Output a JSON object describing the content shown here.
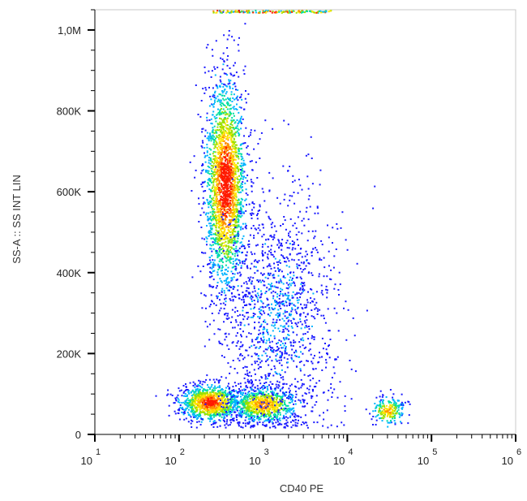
{
  "chart_data": {
    "type": "scatter",
    "subtype": "flow-cytometry-density-dot-plot",
    "title": "",
    "xlabel": "CD40 PE",
    "ylabel": "SS-A :: SS INT LIN",
    "x_scale": "log",
    "xlim": [
      10,
      1000000
    ],
    "x_ticks": [
      {
        "value": 10,
        "base": "10",
        "exp": "1"
      },
      {
        "value": 100,
        "base": "10",
        "exp": "2"
      },
      {
        "value": 1000,
        "base": "10",
        "exp": "3"
      },
      {
        "value": 10000,
        "base": "10",
        "exp": "4"
      },
      {
        "value": 100000,
        "base": "10",
        "exp": "5"
      },
      {
        "value": 1000000,
        "base": "10",
        "exp": "6"
      }
    ],
    "y_scale": "linear",
    "ylim": [
      0,
      1050000
    ],
    "y_ticks": [
      {
        "value": 0,
        "label": "0"
      },
      {
        "value": 200000,
        "label": "200K"
      },
      {
        "value": 400000,
        "label": "400K"
      },
      {
        "value": 600000,
        "label": "600K"
      },
      {
        "value": 800000,
        "label": "800K"
      },
      {
        "value": 1000000,
        "label": "1,0M"
      }
    ],
    "grid": false,
    "color_scale": [
      "#1a1aff",
      "#00b4ff",
      "#00e0a0",
      "#9be000",
      "#ffe600",
      "#ff9000",
      "#ff1a00"
    ],
    "populations": [
      {
        "x_center": 350,
        "y_center": 620000,
        "x_spread_decades": 0.12,
        "y_spread": 130000,
        "points": 2300,
        "peak_density": 1.0
      },
      {
        "x_center": 230,
        "y_center": 80000,
        "x_spread_decades": 0.18,
        "y_spread": 22000,
        "points": 1100,
        "peak_density": 0.95
      },
      {
        "x_center": 1000,
        "y_center": 75000,
        "x_spread_decades": 0.2,
        "y_spread": 22000,
        "points": 900,
        "peak_density": 0.8
      },
      {
        "x_center": 30000,
        "y_center": 60000,
        "x_spread_decades": 0.1,
        "y_spread": 18000,
        "points": 220,
        "peak_density": 0.75
      },
      {
        "x_center": 1500,
        "y_center": 300000,
        "x_spread_decades": 0.35,
        "y_spread": 150000,
        "points": 1400,
        "peak_density": 0.15
      }
    ]
  }
}
